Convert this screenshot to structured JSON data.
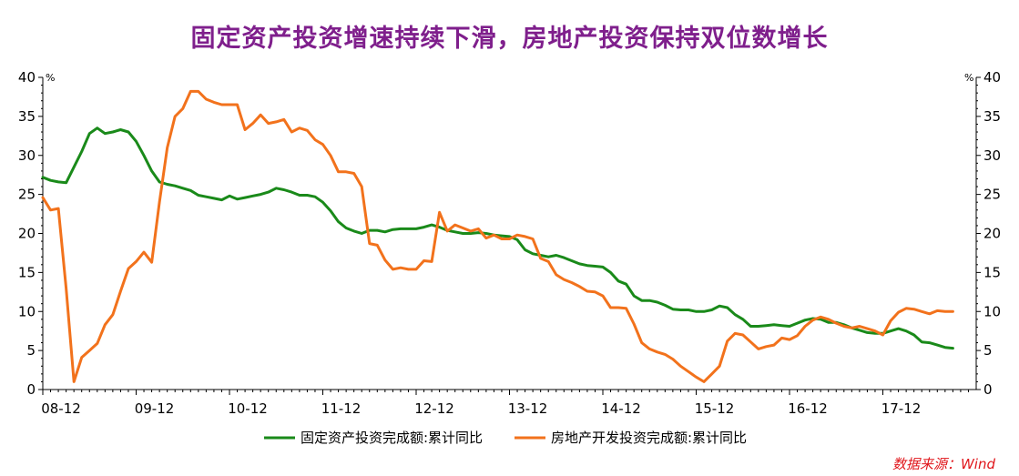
{
  "chart_data": {
    "type": "line",
    "title": "固定资产投资增速持续下滑，房地产投资保持双位数增长",
    "source": "数据来源：Wind",
    "y_unit_left": "%",
    "y_unit_right": "%",
    "ylim": [
      0,
      40
    ],
    "y_ticks": [
      0,
      5,
      10,
      15,
      20,
      25,
      30,
      35,
      40
    ],
    "x_range": [
      0,
      120
    ],
    "x_ticks": [
      {
        "label": "08-12",
        "x": 0
      },
      {
        "label": "09-12",
        "x": 12
      },
      {
        "label": "10-12",
        "x": 24
      },
      {
        "label": "11-12",
        "x": 36
      },
      {
        "label": "12-12",
        "x": 48
      },
      {
        "label": "13-12",
        "x": 60
      },
      {
        "label": "14-12",
        "x": 72
      },
      {
        "label": "15-12",
        "x": 84
      },
      {
        "label": "16-12",
        "x": 96
      },
      {
        "label": "17-12",
        "x": 108
      }
    ],
    "grid": false,
    "legend_position": "bottom",
    "series": [
      {
        "name": "固定资产投资完成额:累计同比",
        "color": "#1a8a1a",
        "points": [
          [
            0,
            27.2
          ],
          [
            1,
            26.8
          ],
          [
            2,
            26.6
          ],
          [
            3,
            26.5
          ],
          [
            4,
            28.5
          ],
          [
            5,
            30.5
          ],
          [
            6,
            32.8
          ],
          [
            7,
            33.5
          ],
          [
            8,
            32.8
          ],
          [
            9,
            33.0
          ],
          [
            10,
            33.3
          ],
          [
            11,
            33.0
          ],
          [
            12,
            31.8
          ],
          [
            13,
            30.0
          ],
          [
            14,
            28.0
          ],
          [
            15,
            26.6
          ],
          [
            16,
            26.3
          ],
          [
            17,
            26.1
          ],
          [
            18,
            25.8
          ],
          [
            19,
            25.5
          ],
          [
            20,
            24.9
          ],
          [
            21,
            24.7
          ],
          [
            22,
            24.5
          ],
          [
            23,
            24.3
          ],
          [
            24,
            24.8
          ],
          [
            25,
            24.4
          ],
          [
            26,
            24.6
          ],
          [
            27,
            24.8
          ],
          [
            28,
            25.0
          ],
          [
            29,
            25.3
          ],
          [
            30,
            25.8
          ],
          [
            31,
            25.6
          ],
          [
            32,
            25.3
          ],
          [
            33,
            24.9
          ],
          [
            34,
            24.9
          ],
          [
            35,
            24.7
          ],
          [
            36,
            24.0
          ],
          [
            37,
            22.9
          ],
          [
            38,
            21.5
          ],
          [
            39,
            20.7
          ],
          [
            40,
            20.3
          ],
          [
            41,
            20.0
          ],
          [
            42,
            20.4
          ],
          [
            43,
            20.4
          ],
          [
            44,
            20.2
          ],
          [
            45,
            20.5
          ],
          [
            46,
            20.6
          ],
          [
            47,
            20.6
          ],
          [
            48,
            20.6
          ],
          [
            49,
            20.8
          ],
          [
            50,
            21.1
          ],
          [
            51,
            20.8
          ],
          [
            52,
            20.4
          ],
          [
            53,
            20.2
          ],
          [
            54,
            20.0
          ],
          [
            55,
            20.0
          ],
          [
            56,
            20.1
          ],
          [
            57,
            20.0
          ],
          [
            58,
            19.8
          ],
          [
            59,
            19.7
          ],
          [
            60,
            19.6
          ],
          [
            61,
            19.2
          ],
          [
            62,
            17.9
          ],
          [
            63,
            17.4
          ],
          [
            64,
            17.2
          ],
          [
            65,
            17.0
          ],
          [
            66,
            17.2
          ],
          [
            67,
            16.9
          ],
          [
            68,
            16.5
          ],
          [
            69,
            16.1
          ],
          [
            70,
            15.9
          ],
          [
            71,
            15.8
          ],
          [
            72,
            15.7
          ],
          [
            73,
            15.0
          ],
          [
            74,
            13.9
          ],
          [
            75,
            13.5
          ],
          [
            76,
            12.0
          ],
          [
            77,
            11.4
          ],
          [
            78,
            11.4
          ],
          [
            79,
            11.2
          ],
          [
            80,
            10.8
          ],
          [
            81,
            10.3
          ],
          [
            82,
            10.2
          ],
          [
            83,
            10.2
          ],
          [
            84,
            10.0
          ],
          [
            85,
            10.0
          ],
          [
            86,
            10.2
          ],
          [
            87,
            10.7
          ],
          [
            88,
            10.5
          ],
          [
            89,
            9.6
          ],
          [
            90,
            9.0
          ],
          [
            91,
            8.1
          ],
          [
            92,
            8.1
          ],
          [
            93,
            8.2
          ],
          [
            94,
            8.3
          ],
          [
            95,
            8.2
          ],
          [
            96,
            8.1
          ],
          [
            97,
            8.5
          ],
          [
            98,
            8.9
          ],
          [
            99,
            9.1
          ],
          [
            100,
            9.0
          ],
          [
            101,
            8.6
          ],
          [
            102,
            8.6
          ],
          [
            103,
            8.3
          ],
          [
            104,
            7.9
          ],
          [
            105,
            7.6
          ],
          [
            106,
            7.3
          ],
          [
            107,
            7.2
          ],
          [
            108,
            7.2
          ],
          [
            109,
            7.5
          ],
          [
            110,
            7.8
          ],
          [
            111,
            7.5
          ],
          [
            112,
            7.0
          ],
          [
            113,
            6.1
          ],
          [
            114,
            6.0
          ],
          [
            115,
            5.7
          ],
          [
            116,
            5.4
          ],
          [
            117,
            5.3
          ]
        ]
      },
      {
        "name": "房地产开发投资完成额:累计同比",
        "color": "#f2721c",
        "points": [
          [
            0,
            24.6
          ],
          [
            1,
            23.0
          ],
          [
            2,
            23.2
          ],
          [
            3,
            13.0
          ],
          [
            4,
            1.0
          ],
          [
            5,
            4.1
          ],
          [
            6,
            5.0
          ],
          [
            7,
            5.9
          ],
          [
            8,
            8.3
          ],
          [
            9,
            9.6
          ],
          [
            10,
            12.6
          ],
          [
            11,
            15.5
          ],
          [
            12,
            16.4
          ],
          [
            13,
            17.6
          ],
          [
            14,
            16.3
          ],
          [
            15,
            24.0
          ],
          [
            16,
            31.0
          ],
          [
            17,
            35.0
          ],
          [
            18,
            36.0
          ],
          [
            19,
            38.2
          ],
          [
            20,
            38.2
          ],
          [
            21,
            37.2
          ],
          [
            22,
            36.8
          ],
          [
            23,
            36.5
          ],
          [
            24,
            36.5
          ],
          [
            25,
            36.5
          ],
          [
            26,
            33.3
          ],
          [
            27,
            34.1
          ],
          [
            28,
            35.2
          ],
          [
            29,
            34.1
          ],
          [
            30,
            34.3
          ],
          [
            31,
            34.6
          ],
          [
            32,
            33.0
          ],
          [
            33,
            33.5
          ],
          [
            34,
            33.2
          ],
          [
            35,
            32.0
          ],
          [
            36,
            31.4
          ],
          [
            37,
            30.0
          ],
          [
            38,
            27.9
          ],
          [
            39,
            27.9
          ],
          [
            40,
            27.7
          ],
          [
            41,
            26.0
          ],
          [
            42,
            18.7
          ],
          [
            43,
            18.5
          ],
          [
            44,
            16.6
          ],
          [
            45,
            15.4
          ],
          [
            46,
            15.6
          ],
          [
            47,
            15.4
          ],
          [
            48,
            15.4
          ],
          [
            49,
            16.5
          ],
          [
            50,
            16.4
          ],
          [
            51,
            22.7
          ],
          [
            52,
            20.3
          ],
          [
            53,
            21.1
          ],
          [
            54,
            20.7
          ],
          [
            55,
            20.3
          ],
          [
            56,
            20.6
          ],
          [
            57,
            19.4
          ],
          [
            58,
            19.8
          ],
          [
            59,
            19.3
          ],
          [
            60,
            19.3
          ],
          [
            61,
            19.8
          ],
          [
            62,
            19.6
          ],
          [
            63,
            19.3
          ],
          [
            64,
            16.8
          ],
          [
            65,
            16.4
          ],
          [
            66,
            14.7
          ],
          [
            67,
            14.1
          ],
          [
            68,
            13.7
          ],
          [
            69,
            13.2
          ],
          [
            70,
            12.6
          ],
          [
            71,
            12.5
          ],
          [
            72,
            12.0
          ],
          [
            73,
            10.5
          ],
          [
            74,
            10.5
          ],
          [
            75,
            10.4
          ],
          [
            76,
            8.4
          ],
          [
            77,
            6.0
          ],
          [
            78,
            5.2
          ],
          [
            79,
            4.8
          ],
          [
            80,
            4.5
          ],
          [
            81,
            3.9
          ],
          [
            82,
            3.0
          ],
          [
            83,
            2.3
          ],
          [
            84,
            1.6
          ],
          [
            85,
            1.0
          ],
          [
            86,
            2.0
          ],
          [
            87,
            3.0
          ],
          [
            88,
            6.2
          ],
          [
            89,
            7.2
          ],
          [
            90,
            7.0
          ],
          [
            91,
            6.1
          ],
          [
            92,
            5.2
          ],
          [
            93,
            5.5
          ],
          [
            94,
            5.7
          ],
          [
            95,
            6.6
          ],
          [
            96,
            6.4
          ],
          [
            97,
            6.9
          ],
          [
            98,
            8.1
          ],
          [
            99,
            8.9
          ],
          [
            100,
            9.3
          ],
          [
            101,
            9.0
          ],
          [
            102,
            8.5
          ],
          [
            103,
            8.1
          ],
          [
            104,
            7.9
          ],
          [
            105,
            8.1
          ],
          [
            106,
            7.8
          ],
          [
            107,
            7.5
          ],
          [
            108,
            7.0
          ],
          [
            109,
            8.8
          ],
          [
            110,
            9.9
          ],
          [
            111,
            10.4
          ],
          [
            112,
            10.3
          ],
          [
            113,
            10.0
          ],
          [
            114,
            9.7
          ],
          [
            115,
            10.1
          ],
          [
            116,
            10.0
          ],
          [
            117,
            10.0
          ]
        ]
      }
    ]
  }
}
